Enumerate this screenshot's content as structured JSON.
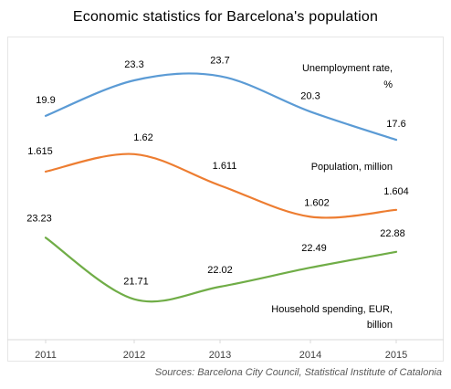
{
  "chart_data": {
    "type": "line",
    "title": "Economic  statistics  for Barcelona's  population",
    "x": [
      "2011",
      "2012",
      "2013",
      "2014",
      "2015"
    ],
    "series": [
      {
        "name": "Unemployment rate, %",
        "label_lines": [
          "Unemployment rate,",
          "%"
        ],
        "values": [
          19.9,
          23.3,
          23.7,
          20.3,
          17.6
        ],
        "value_labels": [
          "19.9",
          "23.3",
          "23.7",
          "20.3",
          "17.6"
        ],
        "color": "#5b9bd5"
      },
      {
        "name": "Population, million",
        "label_lines": [
          "Population,  million"
        ],
        "values": [
          1.615,
          1.62,
          1.611,
          1.602,
          1.604
        ],
        "value_labels": [
          "1.615",
          "1.62",
          "1.611",
          "1.602",
          "1.604"
        ],
        "color": "#ed7d31"
      },
      {
        "name": "Household spending, EUR, billion",
        "label_lines": [
          "Household spending, EUR,",
          "billion"
        ],
        "values": [
          23.23,
          21.71,
          22.02,
          22.49,
          22.88
        ],
        "value_labels": [
          "23.23",
          "21.71",
          "22.02",
          "22.49",
          "22.88"
        ],
        "color": "#70ad47"
      }
    ],
    "grid": false,
    "legend": "inline labels"
  },
  "footer": {
    "source": "Sources:  Barcelona City Council, Statistical Institute  of Catalonia"
  }
}
